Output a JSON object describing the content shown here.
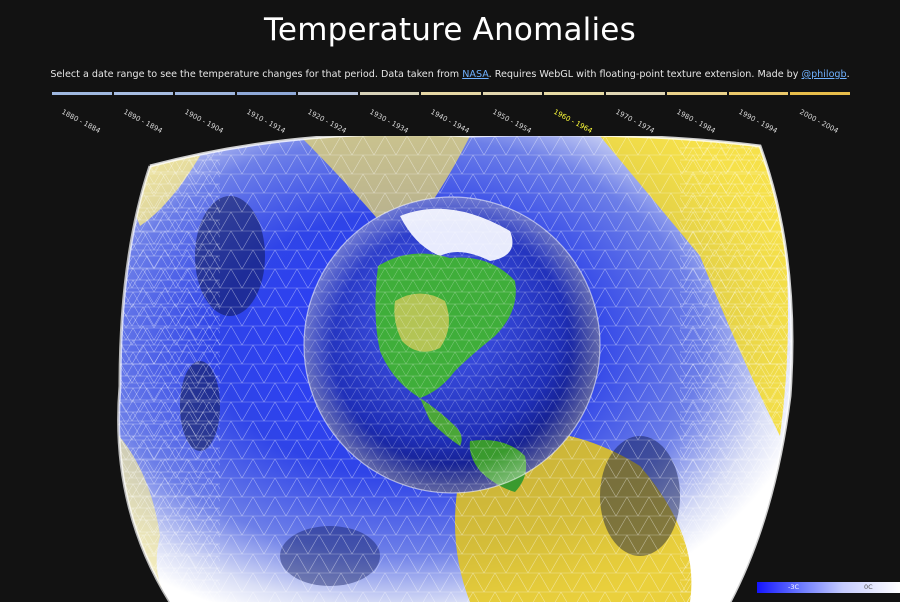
{
  "header": {
    "title": "Temperature Anomalies",
    "subtitle": {
      "text1": "Select a date range to see the temperature changes for that period. Data taken from ",
      "link1": "NASA",
      "text2": ". Requires WebGL with floating-point texture extension. Made by ",
      "link2": "@philogb",
      "text3": "."
    }
  },
  "timeline": {
    "periods": [
      {
        "label": "1880 - 1884",
        "color": "#9fb8e0"
      },
      {
        "label": "1890 - 1894",
        "color": "#a7bde2"
      },
      {
        "label": "1900 - 1904",
        "color": "#9fb6de"
      },
      {
        "label": "1910 - 1914",
        "color": "#8fa9d8"
      },
      {
        "label": "1920 - 1924",
        "color": "#b7c3db"
      },
      {
        "label": "1930 - 1934",
        "color": "#d7d2b8"
      },
      {
        "label": "1940 - 1944",
        "color": "#e6d7a4"
      },
      {
        "label": "1950 - 1954",
        "color": "#e2d6ae"
      },
      {
        "label": "1960 - 1964",
        "color": "#e8dba5"
      },
      {
        "label": "1970 - 1974",
        "color": "#e0d6b4"
      },
      {
        "label": "1980 - 1984",
        "color": "#ead28a"
      },
      {
        "label": "1990 - 1994",
        "color": "#eac86a"
      },
      {
        "label": "2000 - 2004",
        "color": "#e8bd4a"
      }
    ],
    "active_index": 8,
    "active_color": "#ffff3a"
  },
  "legend": {
    "low_label": "-3C",
    "high_label": "0C"
  },
  "colors": {
    "background": "#121212",
    "link": "#6fb1ff",
    "anomaly_cold": "#1a1aff",
    "anomaly_warm": "#ffe21a"
  }
}
